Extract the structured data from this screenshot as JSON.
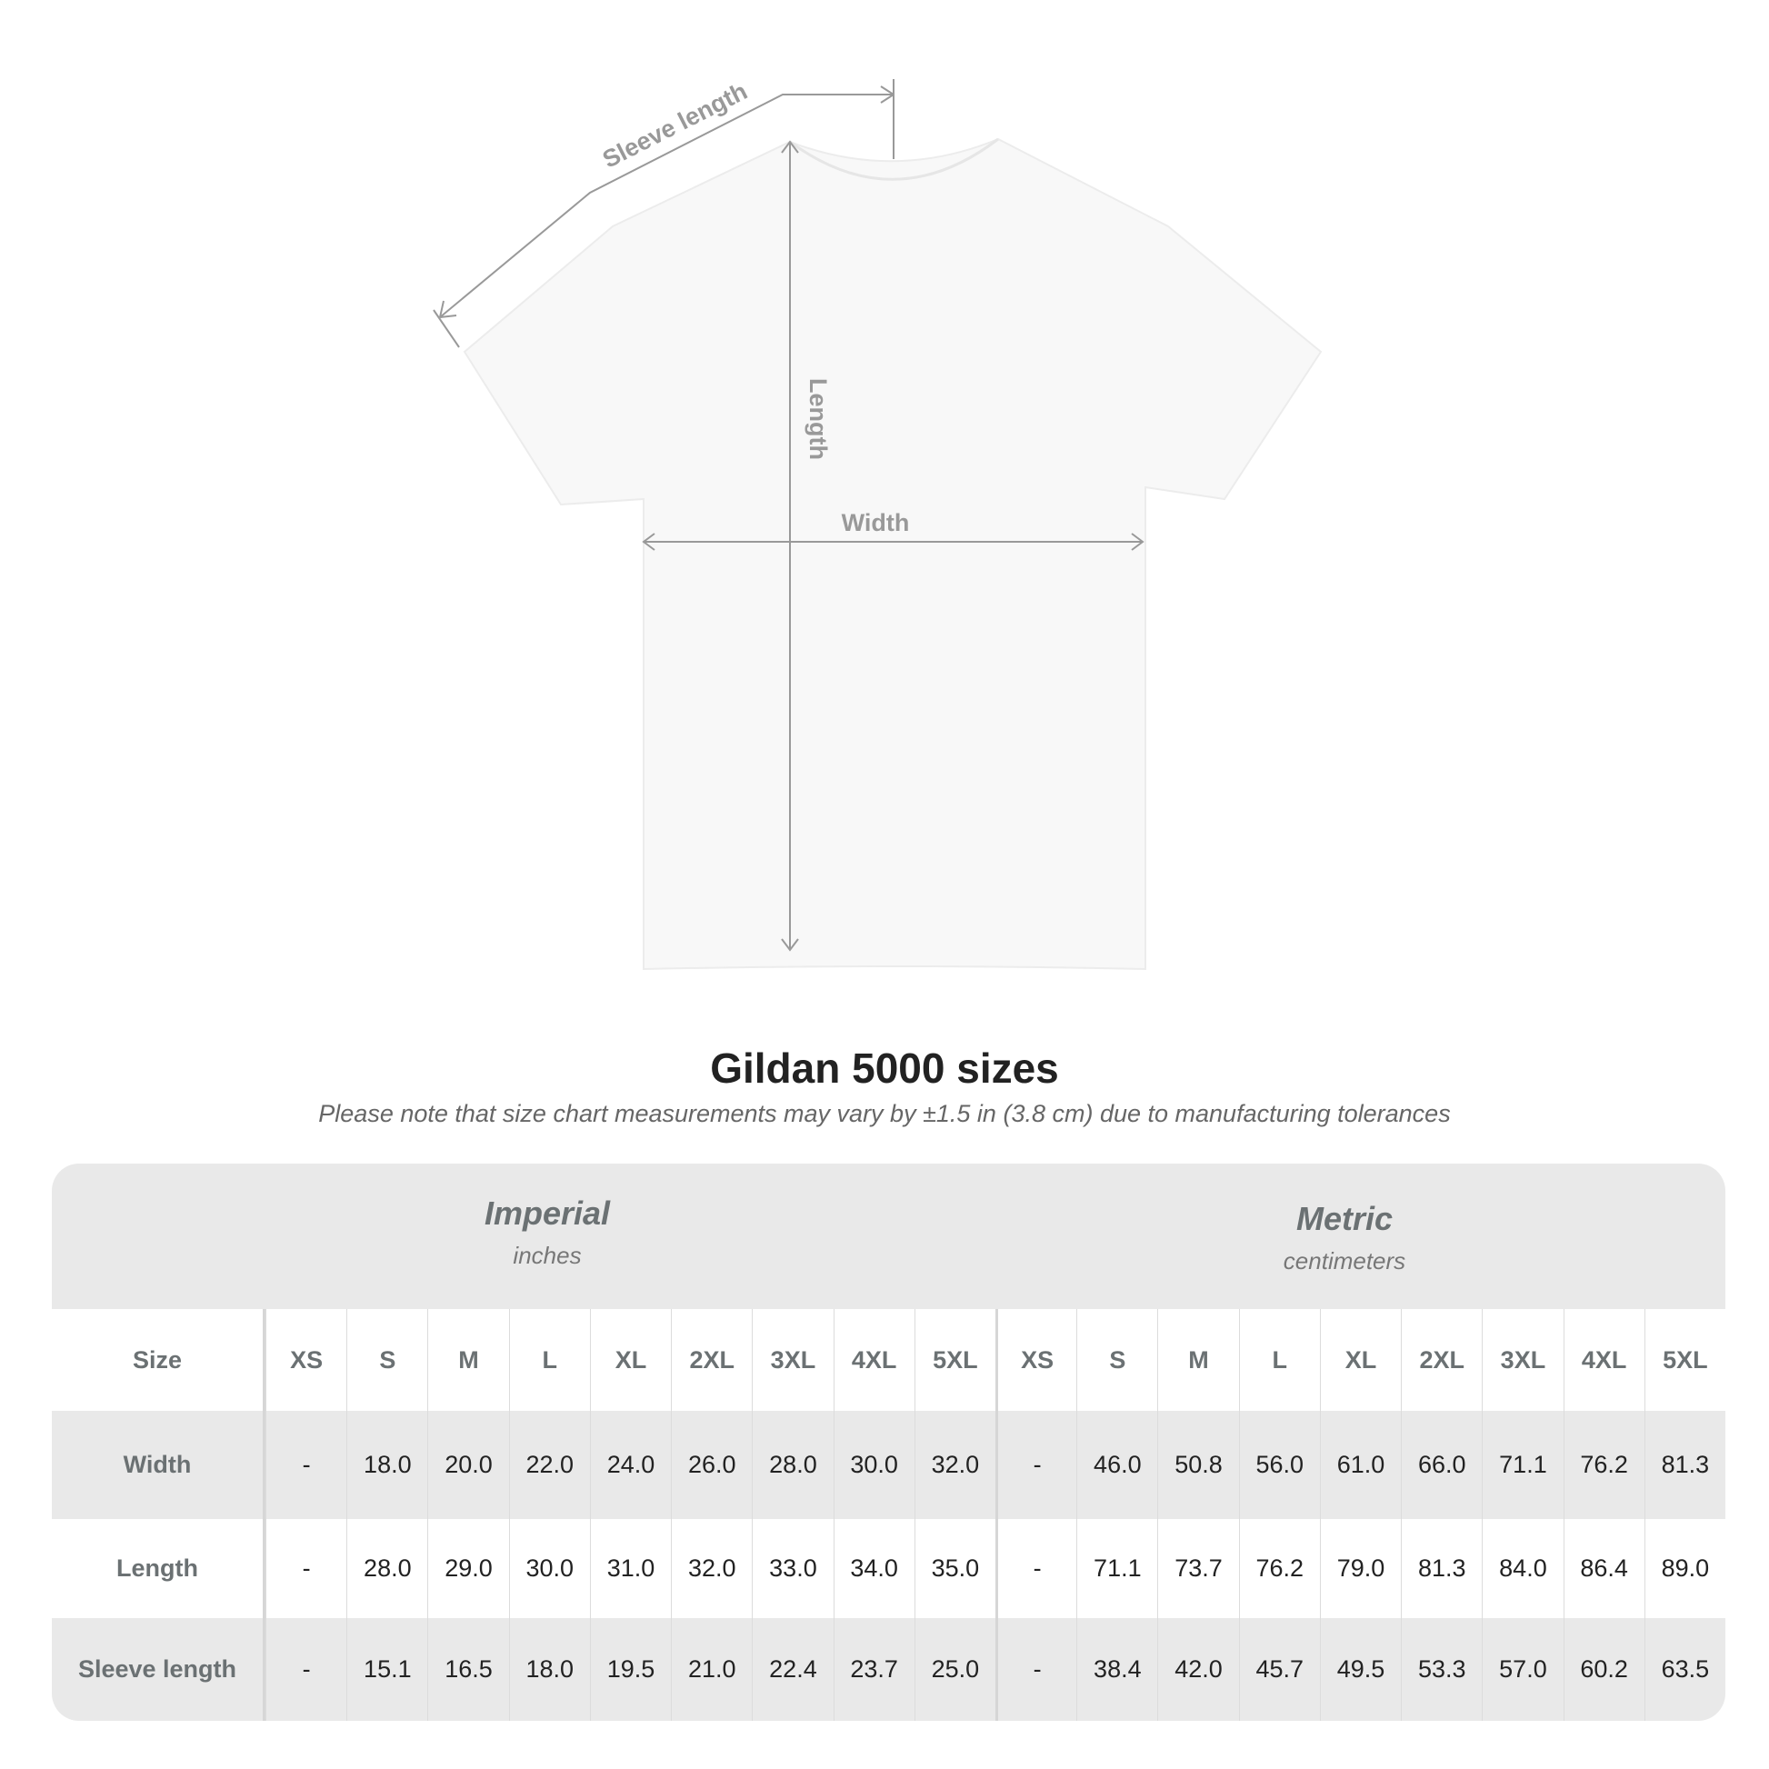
{
  "diagram": {
    "sleeve_label": "Sleeve length",
    "length_label": "Length",
    "width_label": "Width",
    "line_color": "#999999"
  },
  "title": "Gildan 5000 sizes",
  "note": "Please note that size chart measurements may vary by ±1.5 in (3.8 cm) due to manufacturing tolerances",
  "table": {
    "imperial": {
      "name": "Imperial",
      "unit": "inches"
    },
    "metric": {
      "name": "Metric",
      "unit": "centimeters"
    },
    "size_label": "Size",
    "sizes": [
      "XS",
      "S",
      "M",
      "L",
      "XL",
      "2XL",
      "3XL",
      "4XL",
      "5XL"
    ],
    "rows": [
      {
        "label": "Width",
        "imperial": [
          "-",
          "18.0",
          "20.0",
          "22.0",
          "24.0",
          "26.0",
          "28.0",
          "30.0",
          "32.0"
        ],
        "metric": [
          "-",
          "46.0",
          "50.8",
          "56.0",
          "61.0",
          "66.0",
          "71.1",
          "76.2",
          "81.3"
        ]
      },
      {
        "label": "Length",
        "imperial": [
          "-",
          "28.0",
          "29.0",
          "30.0",
          "31.0",
          "32.0",
          "33.0",
          "34.0",
          "35.0"
        ],
        "metric": [
          "-",
          "71.1",
          "73.7",
          "76.2",
          "79.0",
          "81.3",
          "84.0",
          "86.4",
          "89.0"
        ]
      },
      {
        "label": "Sleeve length",
        "imperial": [
          "-",
          "15.1",
          "16.5",
          "18.0",
          "19.5",
          "21.0",
          "22.4",
          "23.7",
          "25.0"
        ],
        "metric": [
          "-",
          "38.4",
          "42.0",
          "45.7",
          "49.5",
          "53.3",
          "57.0",
          "60.2",
          "63.5"
        ]
      }
    ]
  }
}
